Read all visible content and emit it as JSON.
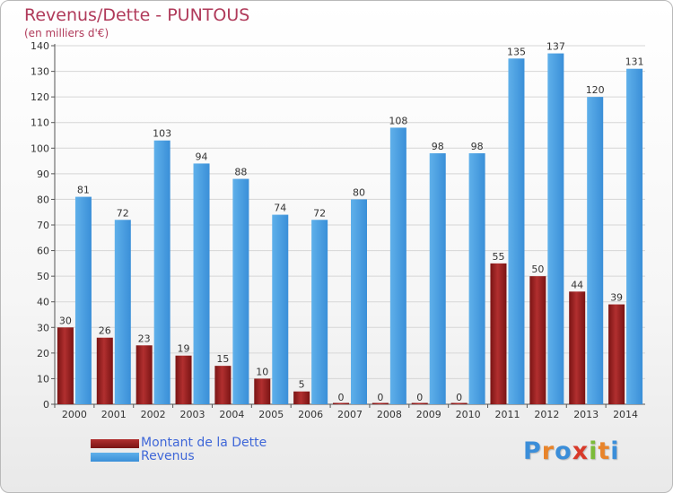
{
  "title": "Revenus/Dette - PUNTOUS",
  "subtitle": "(en milliers d'€)",
  "colors": {
    "debt": "#7a1414",
    "debt_light": "#b12f2f",
    "revenue": "#3a8fd8",
    "revenue_light": "#5fb0ea",
    "axis_text": "#333333",
    "grid": "#d6d6d6"
  },
  "chart_data": {
    "type": "bar",
    "title": "Revenus/Dette - PUNTOUS",
    "ylabel": "(en milliers d'€)",
    "ylim": [
      0,
      140
    ],
    "yticks": [
      0,
      10,
      20,
      30,
      40,
      50,
      60,
      70,
      80,
      90,
      100,
      110,
      120,
      130,
      140
    ],
    "grid": true,
    "legend_position": "bottom-left",
    "categories": [
      "2000",
      "2001",
      "2002",
      "2003",
      "2004",
      "2005",
      "2006",
      "2007",
      "2008",
      "2009",
      "2010",
      "2011",
      "2012",
      "2013",
      "2014"
    ],
    "series": [
      {
        "name": "Montant de la Dette",
        "values": [
          30,
          26,
          23,
          19,
          15,
          10,
          5,
          0,
          0,
          0,
          0,
          55,
          50,
          44,
          39
        ]
      },
      {
        "name": "Revenus",
        "values": [
          81,
          72,
          103,
          94,
          88,
          74,
          72,
          80,
          108,
          98,
          98,
          135,
          137,
          120,
          131
        ]
      }
    ]
  },
  "logo": {
    "letters": [
      "P",
      "r",
      "o",
      "x",
      "i",
      "t",
      "i"
    ],
    "colors": [
      "#3b8ed9",
      "#e8842a",
      "#3b8ed9",
      "#d83a2a",
      "#7bbb3a",
      "#e8842a",
      "#3b8ed9"
    ]
  }
}
